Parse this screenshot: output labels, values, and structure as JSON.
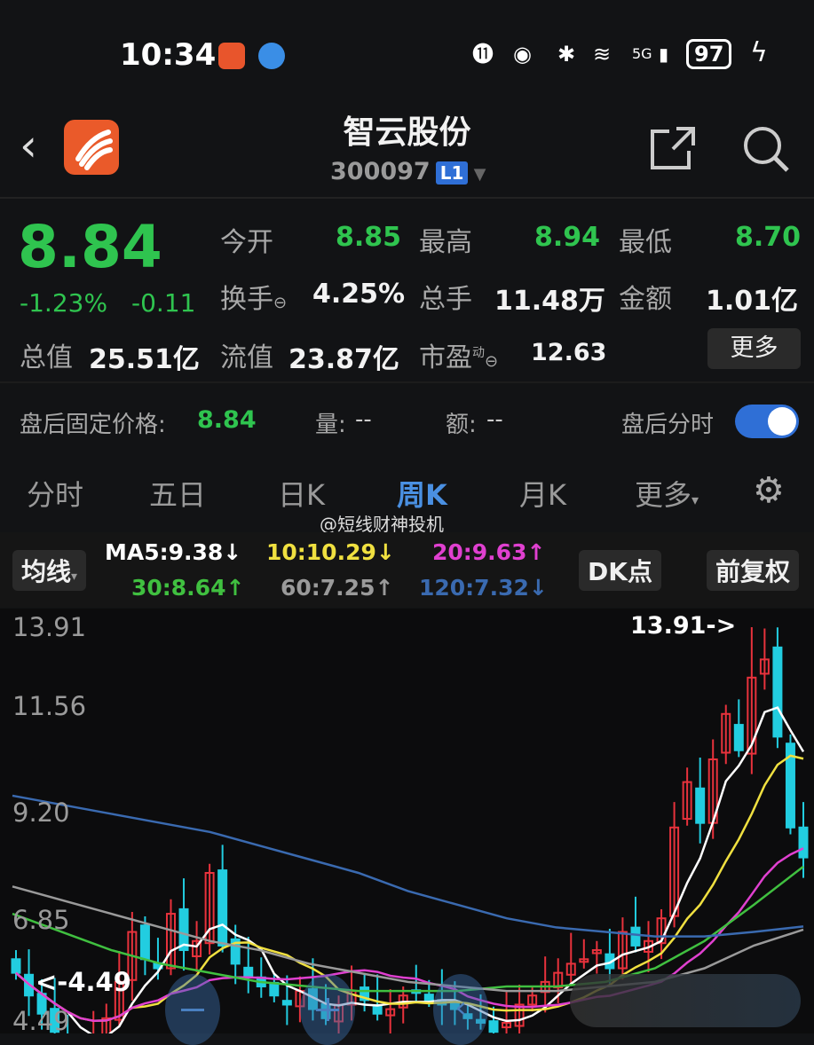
{
  "status_bar": {
    "time": "10:34",
    "battery": "97",
    "network": "5G"
  },
  "header": {
    "title": "智云股份",
    "code": "300097",
    "level_badge": "L1",
    "icons": [
      "back-icon",
      "app-logo",
      "share-icon",
      "search-icon"
    ]
  },
  "quote": {
    "price": "8.84",
    "change_pct": "-1.23%",
    "change": "-0.11",
    "open_label": "今开",
    "open": "8.85",
    "high_label": "最高",
    "high": "8.94",
    "low_label": "最低",
    "low": "8.70",
    "turnover_label": "换手",
    "turnover": "4.25%",
    "volume_label": "总手",
    "volume": "11.48万",
    "amount_label": "金额",
    "amount": "1.01亿",
    "mcap_label": "总值",
    "mcap": "25.51亿",
    "float_label": "流值",
    "float": "23.87亿",
    "pe_label": "市盈",
    "pe_sup": "动",
    "pe": "12.63",
    "more_button": "更多"
  },
  "after_hours": {
    "price_label": "盘后固定价格:",
    "price": "8.84",
    "vol_label": "量:",
    "vol": "--",
    "amt_label": "额:",
    "amt": "--",
    "toggle_label": "盘后分时",
    "toggle_on": true
  },
  "tabs": [
    {
      "label": "分时"
    },
    {
      "label": "五日"
    },
    {
      "label": "日K"
    },
    {
      "label": "周K",
      "active": true
    },
    {
      "label": "月K"
    },
    {
      "label": "更多"
    }
  ],
  "watermark": "@短线财神投机",
  "ma_bar": {
    "selector": "均线",
    "ma5": "MA5:9.38↓",
    "ma10": "10:10.29↓",
    "ma20": "20:9.63↑",
    "ma30": "30:8.64↑",
    "ma60": "60:7.25↑",
    "ma120": "120:7.32↓",
    "dk_button": "DK点",
    "adjust_button": "前复权"
  },
  "colors": {
    "up": "#e8323c",
    "down": "#22cde0",
    "ma5": "#ffffff",
    "ma10": "#f0e040",
    "ma20": "#e040d0",
    "ma30": "#40c040",
    "ma60": "#9a9a9a",
    "ma120": "#3a6ab0",
    "accent": "#4a90e2"
  },
  "chart_data": {
    "type": "candlestick",
    "period": "weekly",
    "y_ticks": [
      "13.91",
      "11.56",
      "9.20",
      "6.85",
      "4.49"
    ],
    "ylim": [
      4.49,
      13.91
    ],
    "max_label": "13.91->",
    "min_label": "<-4.49",
    "closes": [
      6.3,
      5.8,
      5.4,
      5.0,
      4.7,
      4.6,
      4.9,
      5.3,
      6.1,
      7.2,
      6.6,
      6.4,
      7.6,
      6.8,
      7.0,
      8.5,
      6.9,
      6.5,
      6.2,
      6.0,
      5.8,
      5.6,
      5.9,
      5.5,
      5.3,
      5.6,
      5.9,
      5.7,
      5.4,
      5.5,
      5.8,
      5.9,
      5.7,
      5.6,
      5.5,
      5.3,
      5.2,
      5.0,
      5.2,
      5.6,
      5.8,
      6.1,
      6.3,
      6.5,
      6.6,
      6.8,
      6.4,
      7.2,
      6.9,
      7.0,
      7.5,
      9.5,
      10.5,
      9.6,
      11.0,
      12.0,
      11.2,
      12.8,
      13.2,
      11.5,
      9.5,
      8.84
    ],
    "ma30": [
      7.6,
      7.2,
      6.8,
      6.5,
      6.3,
      6.1,
      6.0,
      5.9,
      5.9,
      5.9,
      6.0,
      6.0,
      6.1,
      6.4,
      7.0,
      7.8,
      8.64
    ],
    "ma60": [
      8.2,
      7.9,
      7.6,
      7.3,
      7.0,
      6.8,
      6.5,
      6.3,
      6.1,
      6.0,
      5.9,
      5.9,
      6.0,
      6.1,
      6.4,
      6.9,
      7.25
    ],
    "ma120": [
      10.2,
      10.0,
      9.8,
      9.6,
      9.4,
      9.1,
      8.8,
      8.5,
      8.1,
      7.8,
      7.5,
      7.3,
      7.2,
      7.1,
      7.1,
      7.2,
      7.32
    ]
  },
  "chart_controls": [
    "zoom-out",
    "zoom-in",
    "scroll-left"
  ]
}
